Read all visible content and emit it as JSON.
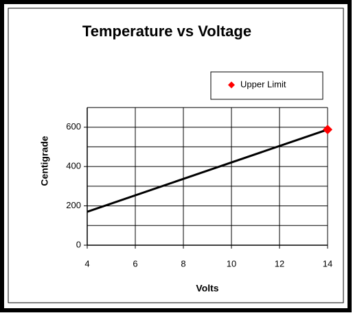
{
  "chart_data": {
    "type": "line",
    "title": "Temperature vs Voltage",
    "x_label": "Volts",
    "y_label": "Centigrade",
    "xlim": [
      4,
      14
    ],
    "xticks": [
      4,
      6,
      8,
      10,
      12,
      14
    ],
    "ylim": [
      0,
      700
    ],
    "yticks": [
      0,
      200,
      400,
      600
    ],
    "yminorticks": [
      100,
      300,
      500,
      700
    ],
    "grid": true,
    "line": {
      "color": "#000000",
      "x": [
        4,
        14
      ],
      "values": [
        170,
        588
      ]
    },
    "series": [
      {
        "name": "Upper Limit",
        "color": "#ff0000",
        "x": [
          14
        ],
        "values": [
          588
        ]
      }
    ],
    "legend": "upper right"
  }
}
